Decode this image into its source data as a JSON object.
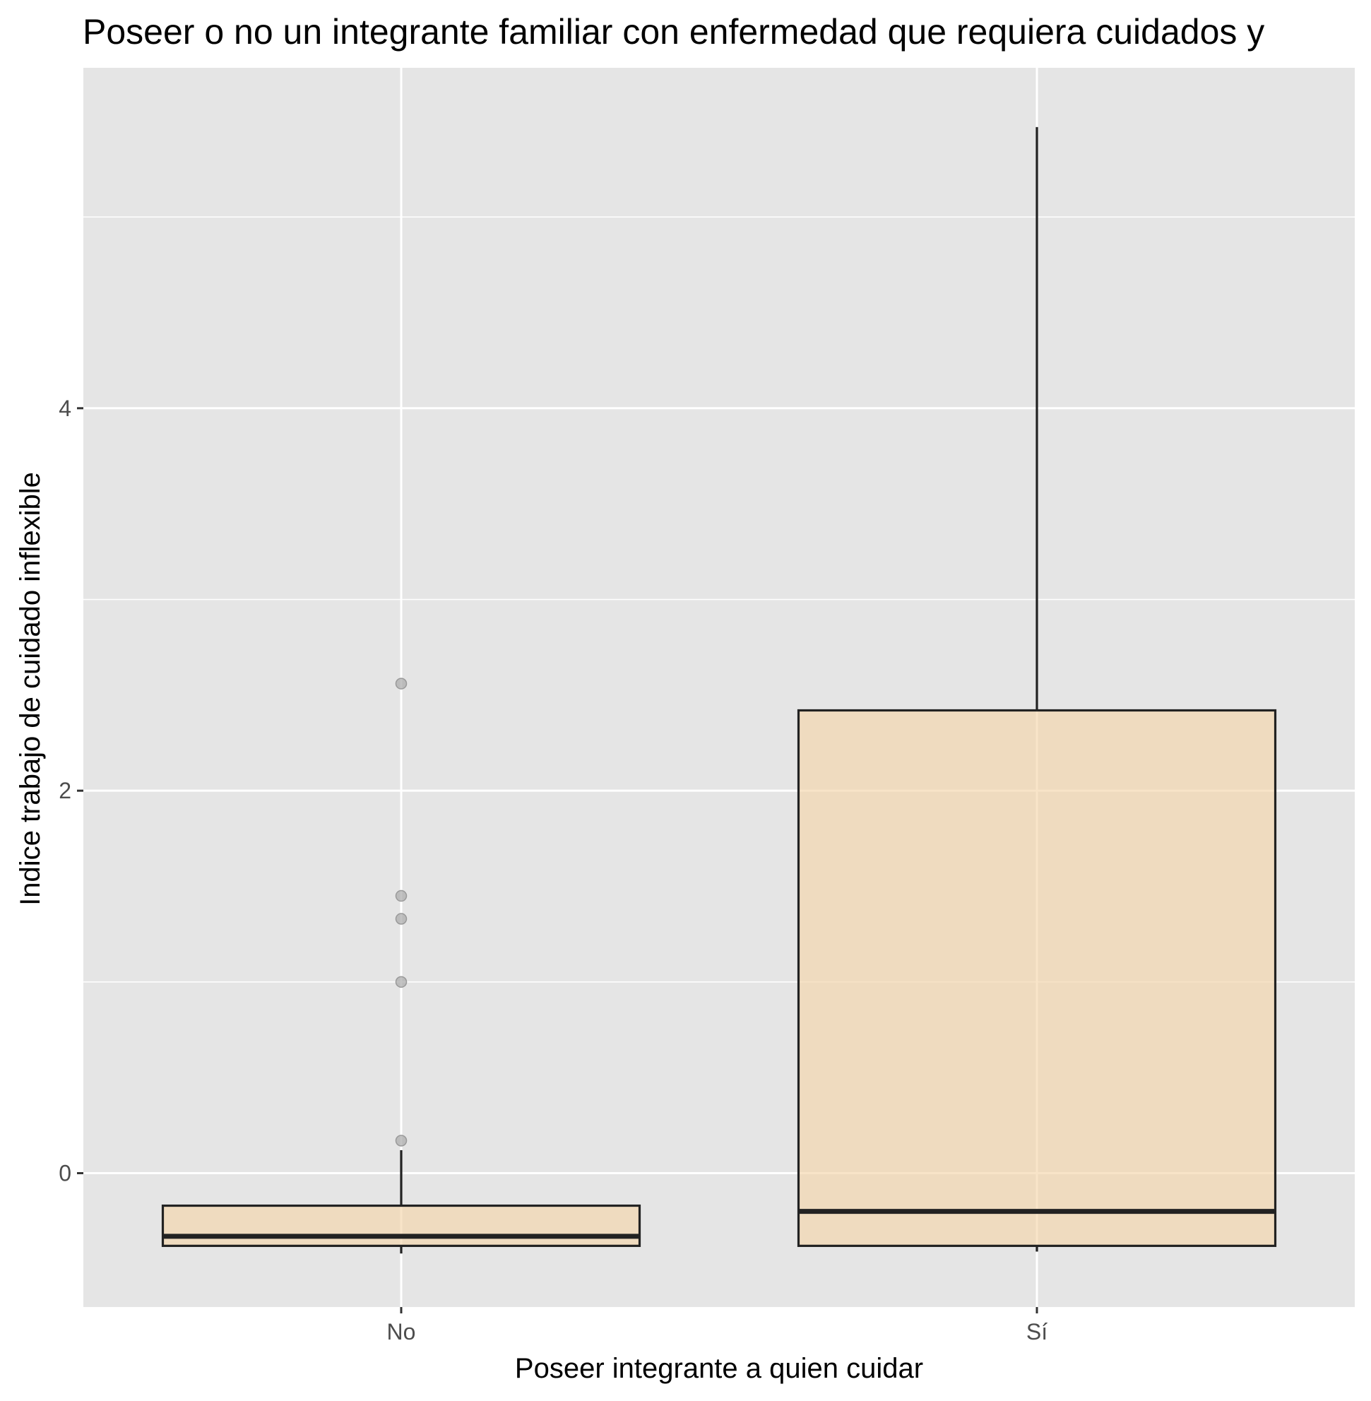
{
  "chart_data": {
    "type": "boxplot",
    "title": "Poseer o no un integrante familiar con enfermedad que requiera cuidados y",
    "xlabel": "Poseer integrante a quien cuidar",
    "ylabel": "Indice trabajo de cuidado inflexible",
    "categories": [
      "No",
      "Sí"
    ],
    "ylim": [
      -0.7,
      5.78
    ],
    "yticks": [
      0,
      2,
      4
    ],
    "grid": true,
    "colors": {
      "panel": "#E5E5E5",
      "grid": "#FFFFFF",
      "box_fill": "#F5D5AA",
      "box_line": "#222222",
      "outlier": "#AAAAAA"
    },
    "boxes": [
      {
        "category": "No",
        "whisker_low": -0.42,
        "q1": -0.38,
        "median": -0.33,
        "q3": -0.17,
        "whisker_high": 0.12,
        "outliers": [
          0.17,
          1.0,
          1.33,
          1.45,
          2.56
        ]
      },
      {
        "category": "Sí",
        "whisker_low": -0.41,
        "q1": -0.38,
        "median": -0.2,
        "q3": 2.42,
        "whisker_high": 5.47,
        "outliers": []
      }
    ]
  }
}
